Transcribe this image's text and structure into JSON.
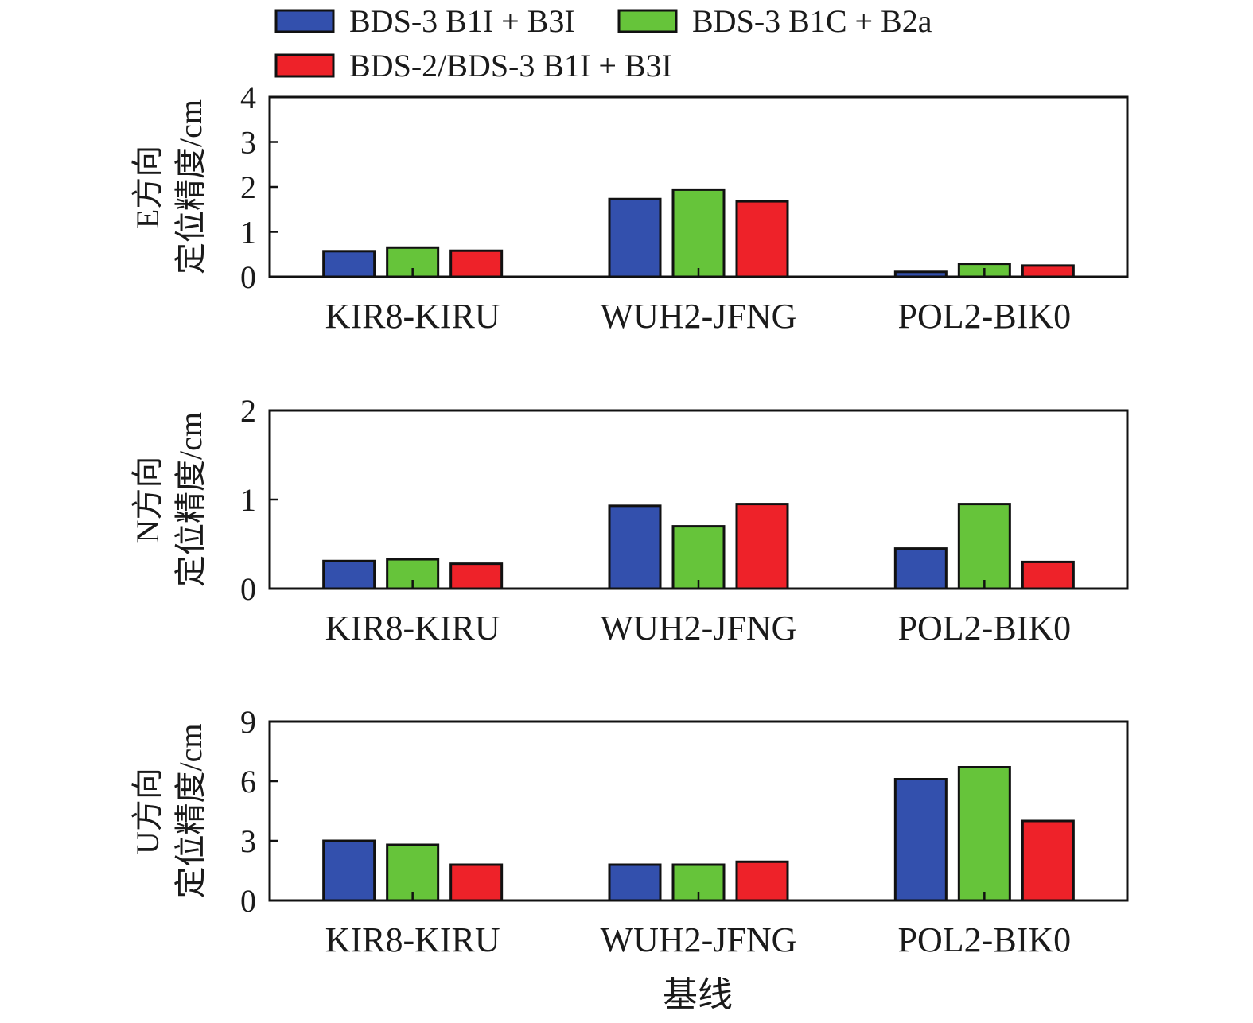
{
  "legend": [
    {
      "name": "BDS-3 B1I + B3I",
      "color": "#3350ad"
    },
    {
      "name": "BDS-3 B1C + B2a",
      "color": "#66c43a"
    },
    {
      "name": "BDS-2/BDS-3 B1I + B3I",
      "color": "#ee2229"
    }
  ],
  "xlabel": "基线",
  "chart_data": [
    {
      "type": "bar",
      "ylabel_lines": [
        "E方向",
        "定位精度/cm"
      ],
      "categories": [
        "KIR8-KIRU",
        "WUH2-JFNG",
        "POL2-BIK0"
      ],
      "ylim": [
        0,
        4
      ],
      "yticks": [
        0,
        1,
        2,
        3,
        4
      ],
      "grid": false,
      "series": [
        {
          "name": "BDS-3 B1I + B3I",
          "color": "#3350ad",
          "values": [
            0.57,
            1.73,
            0.11
          ]
        },
        {
          "name": "BDS-3 B1C + B2a",
          "color": "#66c43a",
          "values": [
            0.65,
            1.94,
            0.29
          ]
        },
        {
          "name": "BDS-2/BDS-3 B1I + B3I",
          "color": "#ee2229",
          "values": [
            0.58,
            1.68,
            0.25
          ]
        }
      ]
    },
    {
      "type": "bar",
      "ylabel_lines": [
        "N方向",
        "定位精度/cm"
      ],
      "categories": [
        "KIR8-KIRU",
        "WUH2-JFNG",
        "POL2-BIK0"
      ],
      "ylim": [
        0,
        2
      ],
      "yticks": [
        0,
        1,
        2
      ],
      "grid": false,
      "series": [
        {
          "name": "BDS-3 B1I + B3I",
          "color": "#3350ad",
          "values": [
            0.31,
            0.93,
            0.45
          ]
        },
        {
          "name": "BDS-3 B1C + B2a",
          "color": "#66c43a",
          "values": [
            0.33,
            0.7,
            0.95
          ]
        },
        {
          "name": "BDS-2/BDS-3 B1I + B3I",
          "color": "#ee2229",
          "values": [
            0.28,
            0.95,
            0.3
          ]
        }
      ]
    },
    {
      "type": "bar",
      "ylabel_lines": [
        "U方向",
        "定位精度/cm"
      ],
      "categories": [
        "KIR8-KIRU",
        "WUH2-JFNG",
        "POL2-BIK0"
      ],
      "ylim": [
        0,
        9
      ],
      "yticks": [
        0,
        3,
        6,
        9
      ],
      "grid": false,
      "series": [
        {
          "name": "BDS-3 B1I + B3I",
          "color": "#3350ad",
          "values": [
            3.0,
            1.8,
            6.1
          ]
        },
        {
          "name": "BDS-3 B1C + B2a",
          "color": "#66c43a",
          "values": [
            2.8,
            1.8,
            6.7
          ]
        },
        {
          "name": "BDS-2/BDS-3 B1I + B3I",
          "color": "#ee2229",
          "values": [
            1.8,
            1.95,
            4.0
          ]
        }
      ]
    }
  ]
}
